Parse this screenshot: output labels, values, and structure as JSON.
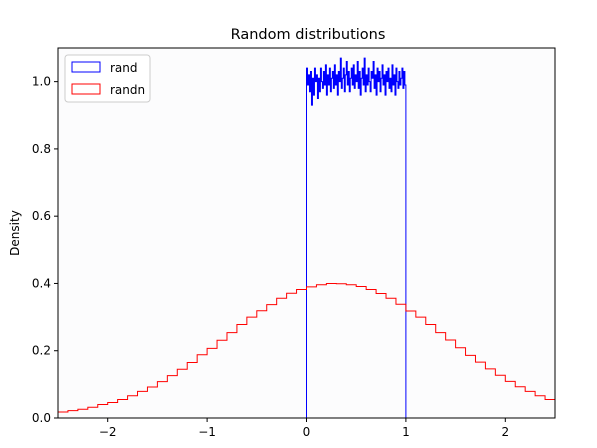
{
  "chart_data": {
    "type": "histogram-step",
    "title": "Random distributions",
    "xlabel": "",
    "ylabel": "Density",
    "xlim": [
      -2.5,
      2.5
    ],
    "ylim": [
      0,
      1.1
    ],
    "xticks": [
      -2,
      -1,
      0,
      1,
      2
    ],
    "xtick_labels": [
      "−2",
      "−1",
      "0",
      "1",
      "2"
    ],
    "yticks": [
      0.0,
      0.2,
      0.4,
      0.6,
      0.8,
      1.0
    ],
    "ytick_labels": [
      "0.0",
      "0.2",
      "0.4",
      "0.6",
      "0.8",
      "1.0"
    ],
    "legend": {
      "location": "upper-left"
    },
    "series": [
      {
        "name": "rand",
        "color": "#0000ff",
        "bin_start": 0,
        "bin_width": 0.01,
        "values": [
          1.04,
          0.99,
          1.02,
          0.97,
          1.03,
          0.93,
          1.01,
          0.96,
          1.04,
          1.0,
          1.02,
          0.95,
          1.01,
          0.97,
          1.04,
          1.0,
          0.98,
          1.03,
          0.99,
          1.05,
          0.96,
          1.02,
          0.99,
          1.04,
          0.97,
          1.01,
          1.03,
          0.98,
          1.05,
          0.99,
          1.02,
          0.96,
          1.03,
          1.0,
          1.07,
          0.98,
          1.01,
          1.04,
          0.97,
          1.02,
          1.06,
          0.99,
          1.03,
          0.97,
          1.01,
          1.04,
          0.99,
          1.05,
          0.98,
          1.02,
          1.0,
          1.06,
          0.98,
          1.03,
          0.96,
          1.01,
          1.04,
          0.99,
          1.07,
          0.97,
          1.02,
          0.99,
          1.04,
          1.0,
          0.97,
          1.03,
          1.01,
          1.06,
          0.98,
          1.02,
          0.96,
          1.04,
          1.0,
          1.03,
          0.97,
          1.01,
          1.05,
          0.99,
          1.02,
          0.96,
          1.03,
          1.0,
          1.04,
          0.98,
          1.01,
          0.97,
          1.05,
          0.99,
          1.02,
          0.96,
          1.04,
          1.0,
          0.98,
          1.03,
          0.99,
          1.01,
          1.04,
          0.98,
          1.03,
          0.99
        ]
      },
      {
        "name": "randn",
        "color": "#ff0000",
        "bin_start": -2.5,
        "bin_width": 0.1,
        "values": [
          0.018,
          0.022,
          0.026,
          0.032,
          0.04,
          0.046,
          0.055,
          0.066,
          0.079,
          0.092,
          0.108,
          0.126,
          0.145,
          0.165,
          0.188,
          0.207,
          0.231,
          0.254,
          0.278,
          0.3,
          0.319,
          0.337,
          0.356,
          0.371,
          0.382,
          0.39,
          0.396,
          0.4,
          0.399,
          0.396,
          0.391,
          0.382,
          0.37,
          0.356,
          0.338,
          0.318,
          0.3,
          0.278,
          0.254,
          0.232,
          0.209,
          0.186,
          0.166,
          0.146,
          0.127,
          0.109,
          0.093,
          0.079,
          0.066,
          0.055
        ]
      }
    ]
  }
}
